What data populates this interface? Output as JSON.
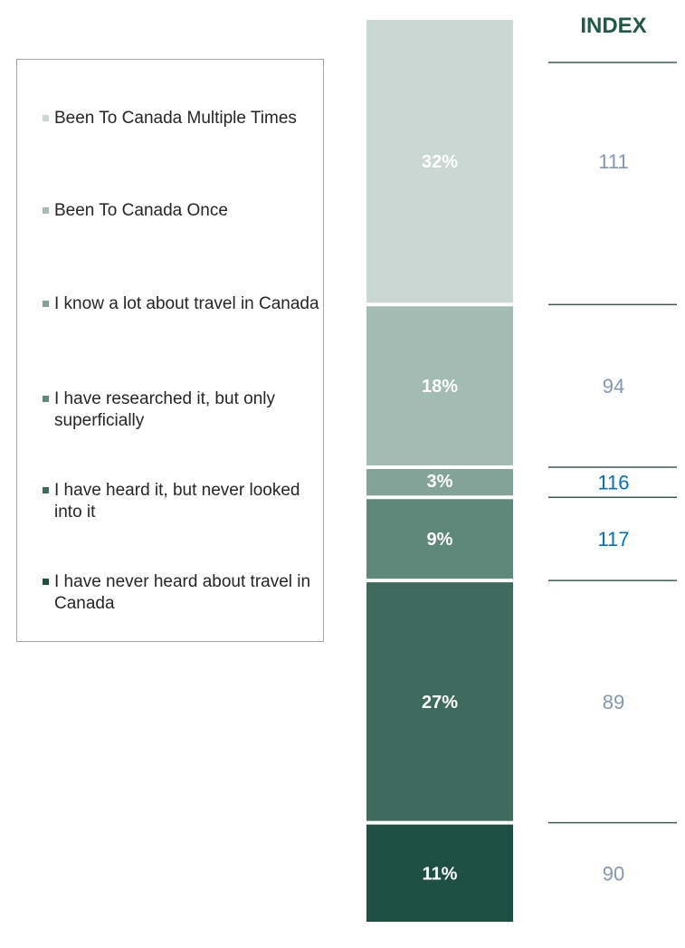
{
  "chart_data": {
    "type": "bar",
    "subtype": "100% stacked column with index column",
    "index_header": "INDEX",
    "series": [
      {
        "name": "Been To Canada Multiple Times",
        "value": 32,
        "label": "32%",
        "index": 111,
        "color": "#c9d8d2",
        "index_color": "#8497b0"
      },
      {
        "name": "Been To Canada Once",
        "value": 18,
        "label": "18%",
        "index": 94,
        "color": "#a2bbb3",
        "index_color": "#8497b0"
      },
      {
        "name": "I know a lot about travel in Canada",
        "value": 3,
        "label": "3%",
        "index": 116,
        "color": "#83a398",
        "index_color": "#0070c0"
      },
      {
        "name": "I have researched it, but only superficially",
        "value": 9,
        "label": "9%",
        "index": 117,
        "color": "#5e887a",
        "index_color": "#0070c0"
      },
      {
        "name": "I have heard it, but never looked into it",
        "value": 27,
        "label": "27%",
        "index": 89,
        "color": "#3f6b5e",
        "index_color": "#8497b0"
      },
      {
        "name": "I have never heard about travel in Canada",
        "value": 11,
        "label": "11%",
        "index": 90,
        "color": "#1e4f43",
        "index_color": "#8497b0"
      }
    ],
    "legend_position": "left",
    "grid": false
  }
}
